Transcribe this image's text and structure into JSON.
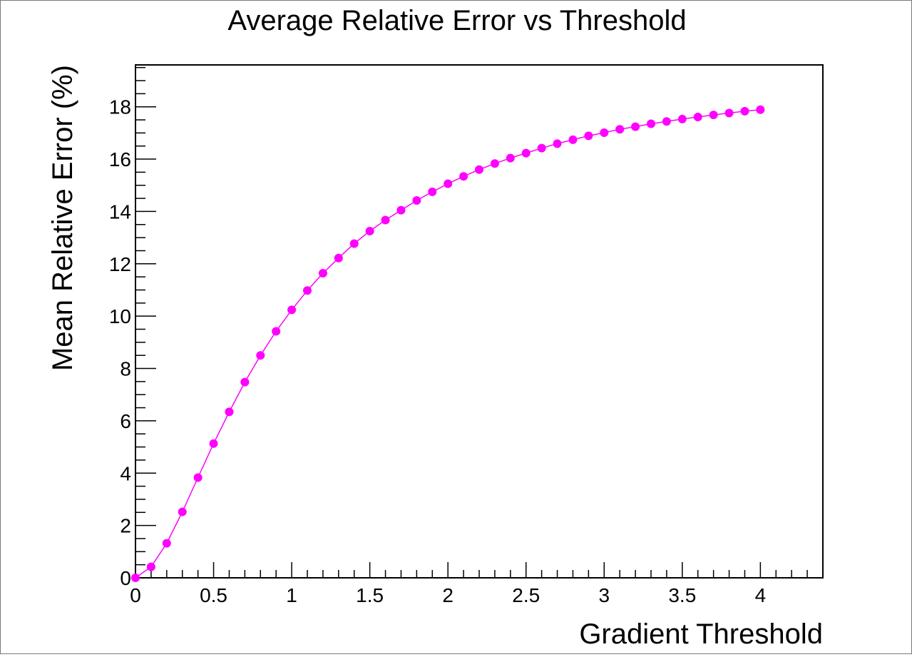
{
  "chart_data": {
    "type": "line",
    "title": "Average Relative Error vs Threshold",
    "xlabel": "Gradient Threshold",
    "ylabel": "Mean Relative Error (%)",
    "xlim": [
      0,
      4.4
    ],
    "ylim": [
      0,
      19.6
    ],
    "xticks": [
      "0",
      "0.5",
      "1",
      "1.5",
      "2",
      "2.5",
      "3",
      "3.5",
      "4"
    ],
    "yticks": [
      "0",
      "2",
      "4",
      "6",
      "8",
      "10",
      "12",
      "14",
      "16",
      "18"
    ],
    "grid": false,
    "legend": "none",
    "series": [
      {
        "color": "#ff00ff",
        "marker": "circle",
        "x": [
          0,
          0.1,
          0.2,
          0.3,
          0.4,
          0.5,
          0.6,
          0.7,
          0.8,
          0.9,
          1.0,
          1.1,
          1.2,
          1.3,
          1.4,
          1.5,
          1.6,
          1.7,
          1.8,
          1.9,
          2.0,
          2.1,
          2.2,
          2.3,
          2.4,
          2.5,
          2.6,
          2.7,
          2.8,
          2.9,
          3.0,
          3.1,
          3.2,
          3.3,
          3.4,
          3.5,
          3.6,
          3.7,
          3.8,
          3.9,
          4.0
        ],
        "y": [
          0.0,
          0.42,
          1.32,
          2.52,
          3.83,
          5.13,
          6.34,
          7.48,
          8.5,
          9.42,
          10.24,
          10.98,
          11.64,
          12.22,
          12.77,
          13.25,
          13.67,
          14.05,
          14.42,
          14.75,
          15.06,
          15.34,
          15.6,
          15.83,
          16.04,
          16.23,
          16.42,
          16.59,
          16.74,
          16.89,
          17.01,
          17.14,
          17.24,
          17.35,
          17.44,
          17.53,
          17.61,
          17.69,
          17.76,
          17.83,
          17.89
        ]
      }
    ]
  }
}
